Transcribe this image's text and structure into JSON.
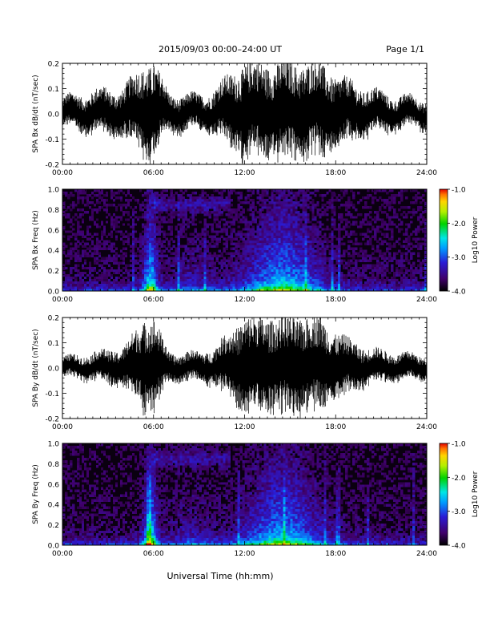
{
  "header": {
    "title": "2015/09/03  00:00–24:00 UT",
    "page": "Page 1/1"
  },
  "footer": {
    "xlabel": "Universal Time (hh:mm)"
  },
  "colors": {
    "background": "#ffffff",
    "trace": "#000000",
    "spectrogram_floor": "#0a0010"
  },
  "chart_data": [
    {
      "type": "line",
      "ylabel": "SPA Bx dB/dt (nT/sec)",
      "x_range": [
        0,
        24
      ],
      "ylim": [
        -0.2,
        0.2
      ],
      "x_ticks": [
        "00:00",
        "06:00",
        "12:00",
        "18:00",
        "24:00"
      ],
      "y_ticks": [
        "0.2",
        "0.1",
        "0.0",
        "-0.1",
        "-0.2"
      ],
      "series": [
        {
          "x": [
            0,
            2,
            4,
            5.5,
            6,
            7,
            9,
            10,
            12,
            13,
            14,
            15,
            16,
            17,
            18,
            20,
            22,
            24
          ],
          "y_amplitude": [
            0.06,
            0.09,
            0.1,
            0.2,
            0.2,
            0.08,
            0.07,
            0.1,
            0.2,
            0.2,
            0.2,
            0.2,
            0.2,
            0.2,
            0.15,
            0.1,
            0.07,
            0.06
          ]
        }
      ]
    },
    {
      "type": "heatmap",
      "ylabel": "SPA Bx Freq (Hz)",
      "x_range": [
        0,
        24
      ],
      "ylim": [
        0,
        1.0
      ],
      "x_ticks": [
        "00:00",
        "06:00",
        "12:00",
        "18:00",
        "24:00"
      ],
      "y_ticks": [
        "1.0",
        "0.8",
        "0.6",
        "0.4",
        "0.2",
        "0.0"
      ],
      "colorbar": {
        "label": "Log10 Power",
        "range": [
          -4.0,
          -1.0
        ],
        "ticks": [
          "-1.0",
          "-2.0",
          "-3.0",
          "-4.0"
        ]
      }
    },
    {
      "type": "line",
      "ylabel": "SPA By dB/dt (nT/sec)",
      "x_range": [
        0,
        24
      ],
      "ylim": [
        -0.2,
        0.2
      ],
      "x_ticks": [
        "00:00",
        "06:00",
        "12:00",
        "18:00",
        "24:00"
      ],
      "y_ticks": [
        "0.2",
        "0.1",
        "0.0",
        "-0.1",
        "-0.2"
      ],
      "series": [
        {
          "x": [
            0,
            2,
            4,
            5.5,
            6,
            7,
            9,
            10,
            12,
            13,
            14,
            15,
            16,
            17,
            18,
            20,
            22,
            24
          ],
          "y_amplitude": [
            0.04,
            0.06,
            0.08,
            0.2,
            0.2,
            0.06,
            0.06,
            0.08,
            0.2,
            0.2,
            0.2,
            0.2,
            0.2,
            0.2,
            0.14,
            0.08,
            0.06,
            0.05
          ]
        }
      ]
    },
    {
      "type": "heatmap",
      "ylabel": "SPA By Freq (Hz)",
      "x_range": [
        0,
        24
      ],
      "ylim": [
        0,
        1.0
      ],
      "x_ticks": [
        "00:00",
        "06:00",
        "12:00",
        "18:00",
        "24:00"
      ],
      "y_ticks": [
        "1.0",
        "0.8",
        "0.6",
        "0.4",
        "0.2",
        "0.0"
      ],
      "colorbar": {
        "label": "Log10 Power",
        "range": [
          -4.0,
          -1.0
        ],
        "ticks": [
          "-1.0",
          "-2.0",
          "-3.0",
          "-4.0"
        ]
      }
    }
  ]
}
